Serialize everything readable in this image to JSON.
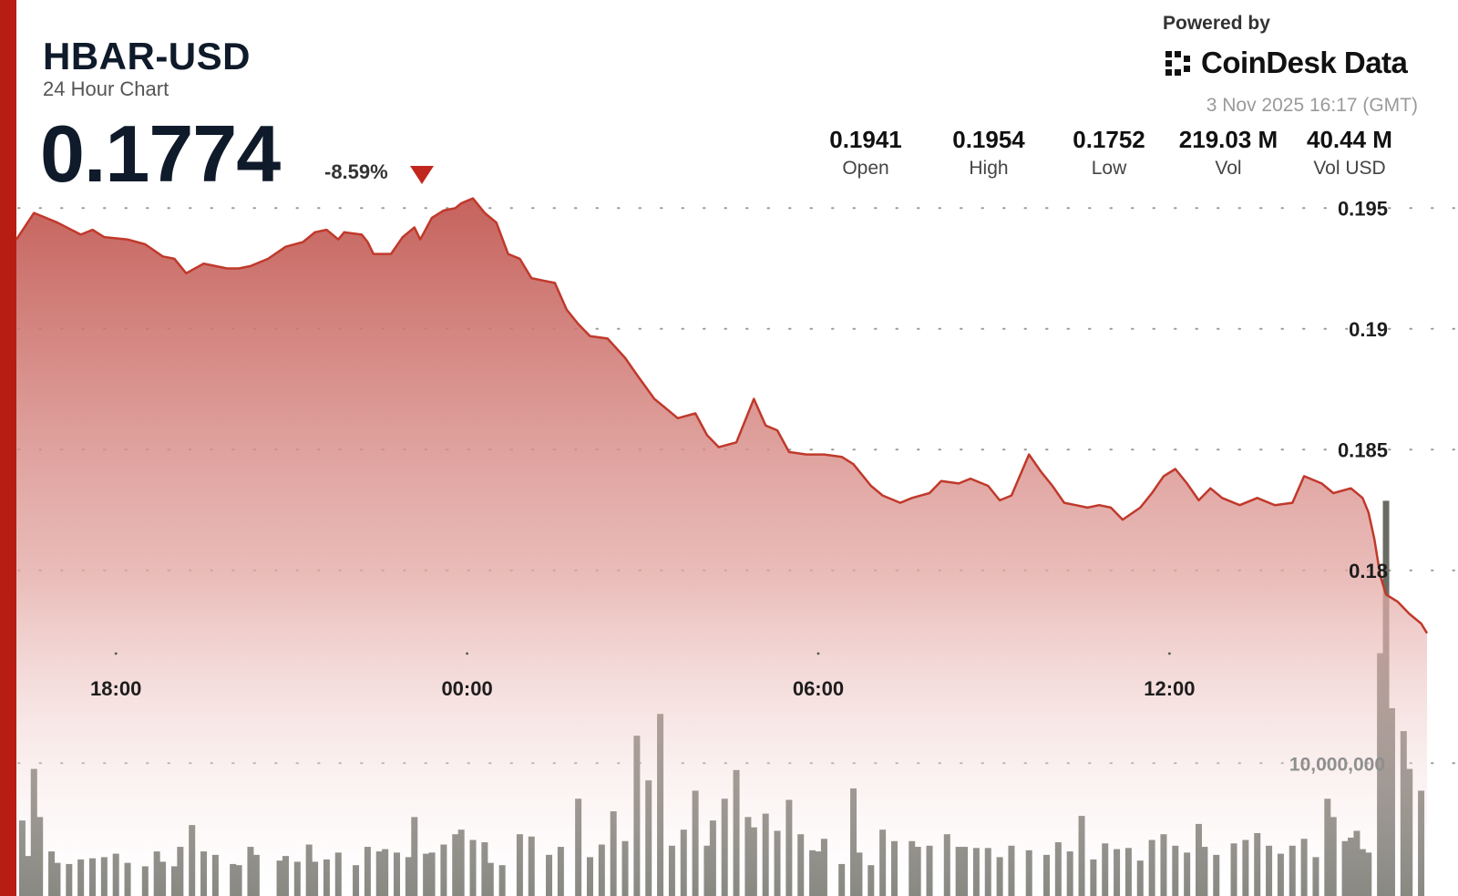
{
  "header": {
    "title": "HBAR-USD",
    "subtitle": "24 Hour Chart",
    "price": "0.1774",
    "change": "-8.59%",
    "brand_powered": "Powered by",
    "brand_name": "CoinDesk Data",
    "timestamp": "3 Nov 2025 16:17 (GMT)"
  },
  "stats": [
    {
      "value": "0.1941",
      "label": "Open"
    },
    {
      "value": "0.1954",
      "label": "High"
    },
    {
      "value": "0.1752",
      "label": "Low"
    },
    {
      "value": "219.03 M",
      "label": "Vol"
    },
    {
      "value": "40.44 M",
      "label": "Vol USD"
    }
  ],
  "colors": {
    "accent": "#b81d13",
    "line": "#c0392b",
    "fill_top": "#c9605a",
    "volume_bar": "#6b6b63",
    "down": "#c0281e"
  },
  "icons": {
    "change": "down-triangle-icon",
    "logo": "coindesk-logo-icon"
  },
  "chart_data": {
    "type": "area",
    "ylim": [
      0.1772,
      0.1955
    ],
    "y_ticks": [
      "0.195",
      "0.19",
      "0.185",
      "0.18"
    ],
    "y_tick_values": [
      0.195,
      0.19,
      0.185,
      0.18
    ],
    "x_ticks": [
      "18:00",
      "00:00",
      "06:00",
      "12:00"
    ],
    "x_tick_hours": [
      1.7,
      7.7,
      13.7,
      19.7
    ],
    "x_range_hours": [
      0,
      24.1
    ],
    "volume_tick_label": "10,000,000",
    "volume_max": 35000000,
    "volume_tick_value": 10000000,
    "grid": "dotted",
    "price": [
      [
        0.0,
        0.1937
      ],
      [
        0.3,
        0.1948
      ],
      [
        0.7,
        0.1944
      ],
      [
        1.1,
        0.1939
      ],
      [
        1.3,
        0.1941
      ],
      [
        1.5,
        0.1938
      ],
      [
        1.9,
        0.1937
      ],
      [
        2.2,
        0.1935
      ],
      [
        2.5,
        0.193
      ],
      [
        2.7,
        0.1929
      ],
      [
        2.9,
        0.1923
      ],
      [
        3.2,
        0.1927
      ],
      [
        3.4,
        0.1926
      ],
      [
        3.6,
        0.1925
      ],
      [
        3.8,
        0.1925
      ],
      [
        4.0,
        0.1926
      ],
      [
        4.3,
        0.1929
      ],
      [
        4.6,
        0.1934
      ],
      [
        4.9,
        0.1936
      ],
      [
        5.1,
        0.194
      ],
      [
        5.3,
        0.1941
      ],
      [
        5.5,
        0.1937
      ],
      [
        5.6,
        0.194
      ],
      [
        5.9,
        0.1939
      ],
      [
        6.0,
        0.1936
      ],
      [
        6.1,
        0.1931
      ],
      [
        6.4,
        0.1931
      ],
      [
        6.6,
        0.1938
      ],
      [
        6.8,
        0.1942
      ],
      [
        6.9,
        0.1937
      ],
      [
        7.1,
        0.1946
      ],
      [
        7.3,
        0.1949
      ],
      [
        7.5,
        0.195
      ],
      [
        7.6,
        0.1952
      ],
      [
        7.8,
        0.1954
      ],
      [
        8.0,
        0.1948
      ],
      [
        8.2,
        0.1944
      ],
      [
        8.4,
        0.1931
      ],
      [
        8.6,
        0.1929
      ],
      [
        8.8,
        0.1921
      ],
      [
        9.0,
        0.192
      ],
      [
        9.2,
        0.1919
      ],
      [
        9.4,
        0.1908
      ],
      [
        9.6,
        0.1902
      ],
      [
        9.8,
        0.1897
      ],
      [
        10.1,
        0.1896
      ],
      [
        10.4,
        0.1888
      ],
      [
        10.6,
        0.1881
      ],
      [
        10.9,
        0.1871
      ],
      [
        11.1,
        0.1867
      ],
      [
        11.3,
        0.1863
      ],
      [
        11.6,
        0.1865
      ],
      [
        11.8,
        0.1856
      ],
      [
        12.0,
        0.1851
      ],
      [
        12.3,
        0.1853
      ],
      [
        12.6,
        0.1871
      ],
      [
        12.8,
        0.186
      ],
      [
        13.0,
        0.1858
      ],
      [
        13.2,
        0.1849
      ],
      [
        13.5,
        0.1848
      ],
      [
        13.8,
        0.1848
      ],
      [
        14.1,
        0.1847
      ],
      [
        14.3,
        0.1844
      ],
      [
        14.6,
        0.1835
      ],
      [
        14.8,
        0.1831
      ],
      [
        15.1,
        0.1828
      ],
      [
        15.3,
        0.183
      ],
      [
        15.6,
        0.1832
      ],
      [
        15.8,
        0.1837
      ],
      [
        16.1,
        0.1836
      ],
      [
        16.3,
        0.1838
      ],
      [
        16.6,
        0.1835
      ],
      [
        16.8,
        0.1829
      ],
      [
        17.0,
        0.1831
      ],
      [
        17.3,
        0.1848
      ],
      [
        17.5,
        0.1841
      ],
      [
        17.7,
        0.1835
      ],
      [
        17.9,
        0.1828
      ],
      [
        18.1,
        0.1827
      ],
      [
        18.3,
        0.1826
      ],
      [
        18.5,
        0.1827
      ],
      [
        18.7,
        0.1826
      ],
      [
        18.9,
        0.1821
      ],
      [
        19.2,
        0.1826
      ],
      [
        19.4,
        0.1832
      ],
      [
        19.6,
        0.1839
      ],
      [
        19.8,
        0.1842
      ],
      [
        20.0,
        0.1836
      ],
      [
        20.2,
        0.1829
      ],
      [
        20.4,
        0.1834
      ],
      [
        20.6,
        0.183
      ],
      [
        20.9,
        0.1827
      ],
      [
        21.2,
        0.183
      ],
      [
        21.5,
        0.1827
      ],
      [
        21.8,
        0.1828
      ],
      [
        22.0,
        0.1839
      ],
      [
        22.3,
        0.1836
      ],
      [
        22.5,
        0.1832
      ],
      [
        22.8,
        0.1834
      ],
      [
        23.0,
        0.183
      ],
      [
        23.1,
        0.1824
      ],
      [
        23.2,
        0.1813
      ],
      [
        23.3,
        0.1798
      ],
      [
        23.4,
        0.179
      ],
      [
        23.6,
        0.1787
      ],
      [
        23.8,
        0.1782
      ],
      [
        24.0,
        0.1778
      ],
      [
        24.1,
        0.1774
      ]
    ],
    "volume": [
      [
        0.1,
        5000000
      ],
      [
        0.2,
        1900000
      ],
      [
        0.3,
        9500000
      ],
      [
        0.4,
        5300000
      ],
      [
        0.6,
        2300000
      ],
      [
        0.7,
        1300000
      ],
      [
        0.9,
        1200000
      ],
      [
        1.1,
        1600000
      ],
      [
        1.3,
        1700000
      ],
      [
        1.5,
        1800000
      ],
      [
        1.7,
        2100000
      ],
      [
        1.9,
        1300000
      ],
      [
        2.2,
        1000000
      ],
      [
        2.4,
        2300000
      ],
      [
        2.5,
        1400000
      ],
      [
        2.7,
        1000000
      ],
      [
        2.8,
        2700000
      ],
      [
        3.0,
        4600000
      ],
      [
        3.2,
        2300000
      ],
      [
        3.4,
        2000000
      ],
      [
        3.7,
        1200000
      ],
      [
        3.8,
        1100000
      ],
      [
        4.0,
        2700000
      ],
      [
        4.1,
        2000000
      ],
      [
        4.5,
        1500000
      ],
      [
        4.6,
        1900000
      ],
      [
        4.8,
        1400000
      ],
      [
        5.0,
        2900000
      ],
      [
        5.1,
        1400000
      ],
      [
        5.3,
        1600000
      ],
      [
        5.5,
        2200000
      ],
      [
        5.8,
        1100000
      ],
      [
        6.0,
        2700000
      ],
      [
        6.2,
        2300000
      ],
      [
        6.3,
        2500000
      ],
      [
        6.5,
        2200000
      ],
      [
        6.7,
        1800000
      ],
      [
        6.8,
        5300000
      ],
      [
        7.0,
        2100000
      ],
      [
        7.1,
        2200000
      ],
      [
        7.3,
        2900000
      ],
      [
        7.5,
        3800000
      ],
      [
        7.6,
        4200000
      ],
      [
        7.8,
        3300000
      ],
      [
        8.0,
        3100000
      ],
      [
        8.1,
        1300000
      ],
      [
        8.3,
        1100000
      ],
      [
        8.6,
        3800000
      ],
      [
        8.8,
        3600000
      ],
      [
        9.1,
        2000000
      ],
      [
        9.3,
        2700000
      ],
      [
        9.6,
        6900000
      ],
      [
        9.8,
        1800000
      ],
      [
        10.0,
        2900000
      ],
      [
        10.2,
        5800000
      ],
      [
        10.4,
        3200000
      ],
      [
        10.6,
        12400000
      ],
      [
        10.8,
        8500000
      ],
      [
        11.0,
        14300000
      ],
      [
        11.2,
        2800000
      ],
      [
        11.4,
        4200000
      ],
      [
        11.6,
        7600000
      ],
      [
        11.8,
        2800000
      ],
      [
        11.9,
        5000000
      ],
      [
        12.1,
        6900000
      ],
      [
        12.3,
        9400000
      ],
      [
        12.5,
        5300000
      ],
      [
        12.6,
        4400000
      ],
      [
        12.8,
        5600000
      ],
      [
        13.0,
        4100000
      ],
      [
        13.2,
        6800000
      ],
      [
        13.4,
        3800000
      ],
      [
        13.6,
        2400000
      ],
      [
        13.7,
        2300000
      ],
      [
        13.8,
        3400000
      ],
      [
        14.1,
        1200000
      ],
      [
        14.3,
        7800000
      ],
      [
        14.4,
        2200000
      ],
      [
        14.6,
        1100000
      ],
      [
        14.8,
        4200000
      ],
      [
        15.0,
        3200000
      ],
      [
        15.3,
        3200000
      ],
      [
        15.4,
        2700000
      ],
      [
        15.6,
        2800000
      ],
      [
        15.9,
        3800000
      ],
      [
        16.1,
        2700000
      ],
      [
        16.2,
        2700000
      ],
      [
        16.4,
        2600000
      ],
      [
        16.6,
        2600000
      ],
      [
        16.8,
        1800000
      ],
      [
        17.0,
        2800000
      ],
      [
        17.3,
        2400000
      ],
      [
        17.6,
        2000000
      ],
      [
        17.8,
        3100000
      ],
      [
        18.0,
        2300000
      ],
      [
        18.2,
        5400000
      ],
      [
        18.4,
        1600000
      ],
      [
        18.6,
        3000000
      ],
      [
        18.8,
        2500000
      ],
      [
        19.0,
        2600000
      ],
      [
        19.2,
        1500000
      ],
      [
        19.4,
        3300000
      ],
      [
        19.6,
        3800000
      ],
      [
        19.8,
        2800000
      ],
      [
        20.0,
        2200000
      ],
      [
        20.2,
        4700000
      ],
      [
        20.3,
        2700000
      ],
      [
        20.5,
        2000000
      ],
      [
        20.8,
        3000000
      ],
      [
        21.0,
        3300000
      ],
      [
        21.2,
        3900000
      ],
      [
        21.4,
        2800000
      ],
      [
        21.6,
        2100000
      ],
      [
        21.8,
        2800000
      ],
      [
        22.0,
        3400000
      ],
      [
        22.2,
        1800000
      ],
      [
        22.4,
        6900000
      ],
      [
        22.5,
        5300000
      ],
      [
        22.7,
        3200000
      ],
      [
        22.8,
        3500000
      ],
      [
        22.9,
        4100000
      ],
      [
        23.0,
        2500000
      ],
      [
        23.1,
        2200000
      ],
      [
        23.3,
        19600000
      ],
      [
        23.4,
        32900000
      ],
      [
        23.5,
        14800000
      ],
      [
        23.7,
        12800000
      ],
      [
        23.8,
        9500000
      ],
      [
        24.0,
        7600000
      ]
    ]
  }
}
